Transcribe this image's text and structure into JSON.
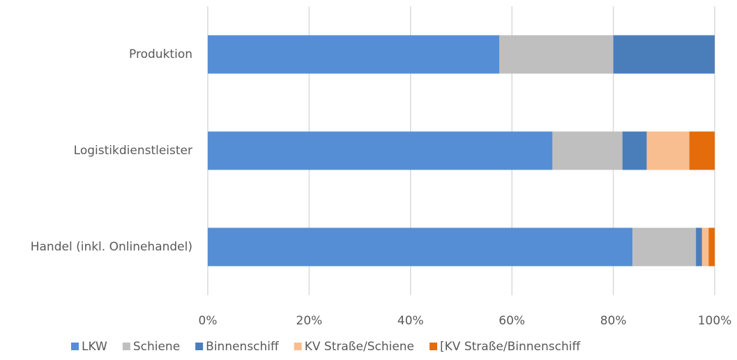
{
  "chart_data": {
    "type": "bar",
    "orientation": "horizontal",
    "stacked": true,
    "categories": [
      "Produktion",
      "Logistikdienstleister",
      "Handel (inkl. Onlinehandel)"
    ],
    "series": [
      {
        "name": "LKW",
        "color": "#558ed5",
        "values": [
          57.5,
          68,
          83.8
        ]
      },
      {
        "name": "Schiene",
        "color": "#bfbfbf",
        "values": [
          22.5,
          13.8,
          12.5
        ]
      },
      {
        "name": "Binnenschiff",
        "color": "#4a7ebb",
        "values": [
          20,
          4.8,
          1.2
        ]
      },
      {
        "name": "KV Straße/Schiene",
        "color": "#f9be8f",
        "values": [
          0,
          8.4,
          1.3
        ]
      },
      {
        "name": "[KV Straße/Binnenschiff",
        "color": "#e46c0a",
        "values": [
          0,
          5,
          1.2
        ]
      }
    ],
    "xlim": [
      0,
      100
    ],
    "xticks": [
      {
        "value": 0,
        "label": "0%"
      },
      {
        "value": 20,
        "label": "20%"
      },
      {
        "value": 40,
        "label": "40%"
      },
      {
        "value": 60,
        "label": "60%"
      },
      {
        "value": 80,
        "label": "80%"
      },
      {
        "value": 100,
        "label": "100%"
      }
    ],
    "grid": true,
    "legend": "bottom"
  }
}
